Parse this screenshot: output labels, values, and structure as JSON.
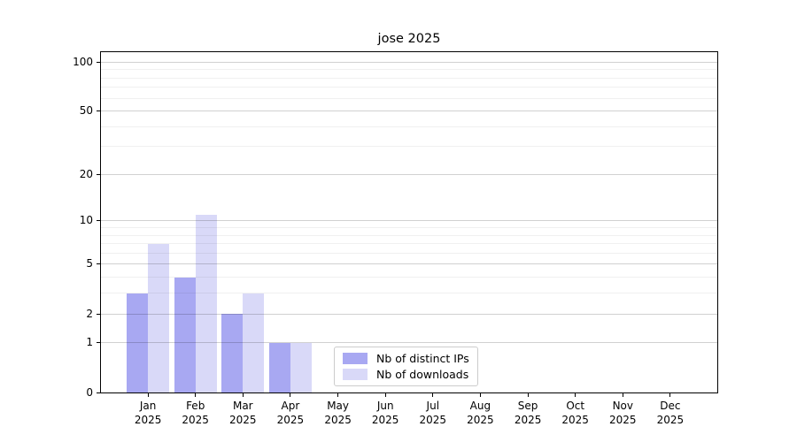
{
  "chart_data": {
    "type": "bar",
    "title": "jose 2025",
    "x_categories": [
      "Jan",
      "Feb",
      "Mar",
      "Apr",
      "May",
      "Jun",
      "Jul",
      "Aug",
      "Sep",
      "Oct",
      "Nov",
      "Dec"
    ],
    "x_year": "2025",
    "series": [
      {
        "name": "Nb of distinct IPs",
        "color": "#a8a8f2",
        "values": [
          3,
          4,
          2,
          1,
          0,
          0,
          0,
          0,
          0,
          0,
          0,
          0
        ]
      },
      {
        "name": "Nb of downloads",
        "color": "#d9d9f8",
        "values": [
          7,
          11,
          3,
          1,
          0,
          0,
          0,
          0,
          0,
          0,
          0,
          0
        ]
      }
    ],
    "y_axis": {
      "scale": "log1p",
      "major_ticks": [
        0,
        1,
        2,
        5,
        10,
        20,
        50,
        100
      ],
      "minor_gridlines": [
        3,
        4,
        6,
        7,
        8,
        9,
        30,
        40,
        60,
        70,
        80,
        90
      ],
      "ylim": [
        0,
        115
      ]
    },
    "legend_position": "lower center",
    "grid": true,
    "colors": {
      "grid_major": "rgba(0,0,0,0.18)",
      "grid_minor": "rgba(0,0,0,0.06)",
      "spine": "#000000",
      "text": "#000000",
      "background": "#ffffff",
      "legend_border": "#cccccc"
    }
  }
}
